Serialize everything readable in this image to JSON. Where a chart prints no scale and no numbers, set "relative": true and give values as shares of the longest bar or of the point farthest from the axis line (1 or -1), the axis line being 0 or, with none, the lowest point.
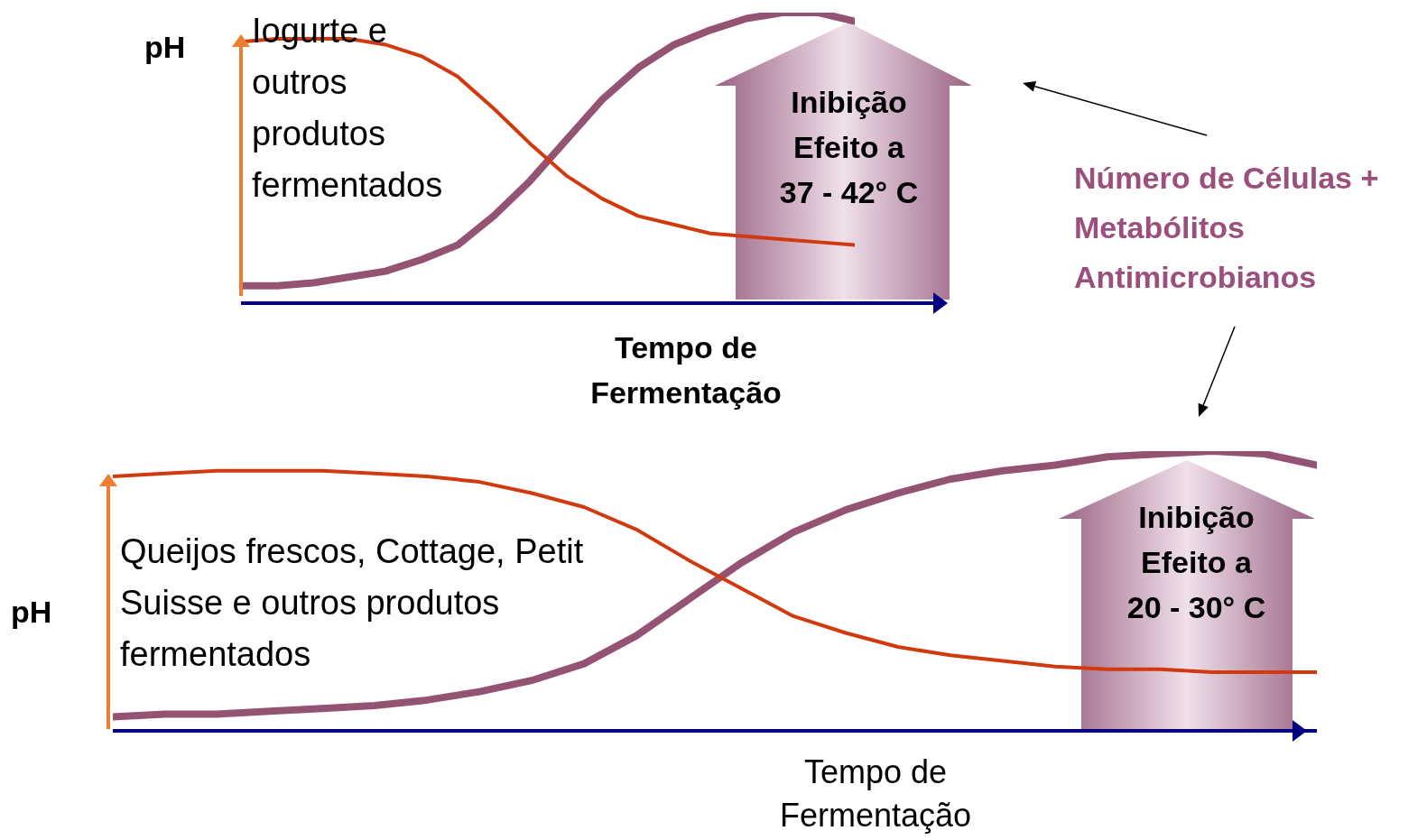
{
  "chart_data": [
    {
      "type": "line",
      "relative": true,
      "ylabel": "pH",
      "xlabel": "Tempo de Fermentação",
      "categories": [
        null,
        null,
        null,
        null,
        null,
        null,
        null,
        null,
        null,
        null,
        null,
        null,
        null,
        null,
        null,
        null,
        null,
        null
      ],
      "series": [
        {
          "color": "#955373",
          "values": [
            0.06,
            0.06,
            0.07,
            0.09,
            0.11,
            0.15,
            0.2,
            0.3,
            0.42,
            0.56,
            0.7,
            0.81,
            0.89,
            0.94,
            0.98,
            1,
            1,
            0.97
          ]
        },
        {
          "color": "#d03a0e",
          "values": [
            0.9,
            0.91,
            0.91,
            0.91,
            0.89,
            0.85,
            0.78,
            0.67,
            0.55,
            0.44,
            0.36,
            0.3,
            0.27,
            0.24,
            0.23,
            0.22,
            0.21,
            0.2
          ]
        }
      ],
      "annotations": [
        "Iogurte e outros produtos fermentados",
        "Inibição Efeito a 37 - 42° C",
        "Número de Células + Metabólitos Antimicrobianos"
      ]
    },
    {
      "type": "line",
      "relative": true,
      "ylabel": "pH",
      "xlabel": "Tempo de Fermentação",
      "categories": [
        null,
        null,
        null,
        null,
        null,
        null,
        null,
        null,
        null,
        null,
        null,
        null,
        null,
        null,
        null,
        null,
        null,
        null,
        null,
        null,
        null,
        null,
        null,
        null
      ],
      "series": [
        {
          "color": "#955373",
          "values": [
            0.05,
            0.06,
            0.06,
            0.07,
            0.08,
            0.09,
            0.11,
            0.14,
            0.18,
            0.24,
            0.34,
            0.47,
            0.6,
            0.71,
            0.79,
            0.85,
            0.9,
            0.93,
            0.95,
            0.98,
            0.99,
            1,
            0.99,
            0.95
          ]
        },
        {
          "color": "#d03a0e",
          "values": [
            0.91,
            0.92,
            0.93,
            0.93,
            0.93,
            0.92,
            0.91,
            0.89,
            0.85,
            0.8,
            0.72,
            0.61,
            0.51,
            0.41,
            0.35,
            0.3,
            0.27,
            0.25,
            0.23,
            0.22,
            0.22,
            0.21,
            0.21,
            0.21
          ]
        }
      ],
      "annotations": [
        "Queijos frescos, Cottage, Petit Suisse e outros produtos fermentados",
        "Inibição Efeito a 20 - 30° C"
      ]
    }
  ]
}
